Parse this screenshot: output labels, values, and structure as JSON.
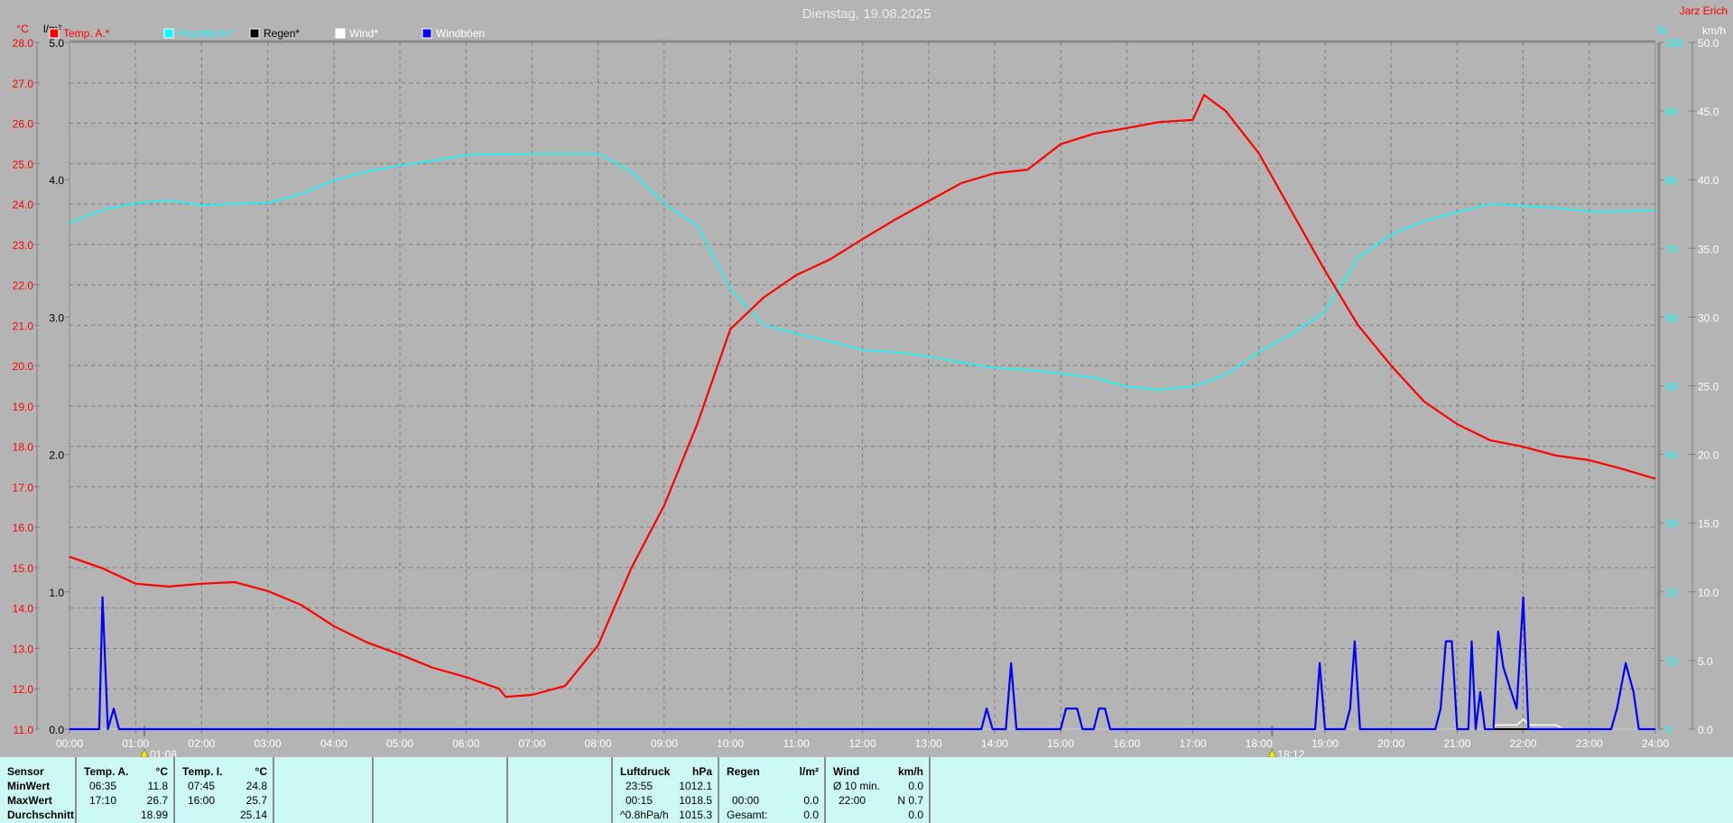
{
  "title": "Dienstag, 19.08.2025",
  "author": "Jarz Erich",
  "colors": {
    "background": "#b4b4b4",
    "temp": "#ff0000",
    "humidity": "#00ffff",
    "rain": "#000000",
    "wind": "#ffffff",
    "gust": "#0000ff",
    "panel": "#ccf9f5"
  },
  "chart_data": {
    "type": "line",
    "title": "Dienstag, 19.08.2025",
    "grid": true,
    "legend_position": "top-left",
    "x_axis": {
      "range": [
        "00:00",
        "24:00"
      ],
      "ticks": [
        "00:00",
        "01:00",
        "02:00",
        "03:00",
        "04:00",
        "05:00",
        "06:00",
        "07:00",
        "08:00",
        "09:00",
        "10:00",
        "11:00",
        "12:00",
        "13:00",
        "14:00",
        "15:00",
        "16:00",
        "17:00",
        "18:00",
        "19:00",
        "20:00",
        "21:00",
        "22:00",
        "23:00",
        "24:00"
      ]
    },
    "axes": {
      "temp": {
        "unit": "°C",
        "range": [
          11.0,
          28.0
        ],
        "ticks": [
          "11.0",
          "12.0",
          "13.0",
          "14.0",
          "15.0",
          "16.0",
          "17.0",
          "18.0",
          "19.0",
          "20.0",
          "21.0",
          "22.0",
          "23.0",
          "24.0",
          "25.0",
          "26.0",
          "27.0",
          "28.0"
        ]
      },
      "rain": {
        "unit": "l/m²",
        "range": [
          0,
          5
        ],
        "ticks": [
          "0.0",
          "1.0",
          "2.0",
          "3.0",
          "4.0",
          "5.0"
        ]
      },
      "humidity": {
        "unit": "%",
        "range": [
          0,
          100
        ],
        "ticks": [
          "0",
          "10",
          "20",
          "30",
          "40",
          "50",
          "60",
          "70",
          "80",
          "90",
          "100"
        ]
      },
      "wind": {
        "unit": "km/h",
        "range": [
          0,
          50
        ],
        "ticks": [
          "0.0",
          "5.0",
          "10.0",
          "15.0",
          "20.0",
          "25.0",
          "30.0",
          "35.0",
          "40.0",
          "45.0",
          "50.0"
        ]
      }
    },
    "markers": [
      {
        "time": "01:08",
        "label": "01:08"
      },
      {
        "time": "18:12",
        "label": "18:12"
      }
    ],
    "series": [
      {
        "name": "Temp. A.*",
        "axis": "temp",
        "color": "#ff0000",
        "points": [
          [
            0,
            15.27
          ],
          [
            0.5,
            14.98
          ],
          [
            1,
            14.6
          ],
          [
            1.5,
            14.53
          ],
          [
            2,
            14.6
          ],
          [
            2.5,
            14.64
          ],
          [
            3,
            14.42
          ],
          [
            3.5,
            14.08
          ],
          [
            4,
            13.55
          ],
          [
            4.5,
            13.15
          ],
          [
            5,
            12.85
          ],
          [
            5.5,
            12.52
          ],
          [
            6,
            12.29
          ],
          [
            6.5,
            12.0
          ],
          [
            6.6,
            11.8
          ],
          [
            7,
            11.85
          ],
          [
            7.5,
            12.07
          ],
          [
            8,
            13.08
          ],
          [
            8.5,
            14.98
          ],
          [
            9,
            16.54
          ],
          [
            9.5,
            18.55
          ],
          [
            10,
            20.9
          ],
          [
            10.5,
            21.68
          ],
          [
            11,
            22.24
          ],
          [
            11.5,
            22.62
          ],
          [
            12,
            23.13
          ],
          [
            12.5,
            23.62
          ],
          [
            13,
            24.07
          ],
          [
            13.5,
            24.52
          ],
          [
            14,
            24.76
          ],
          [
            14.5,
            24.85
          ],
          [
            15,
            25.48
          ],
          [
            15.5,
            25.74
          ],
          [
            16,
            25.88
          ],
          [
            16.5,
            26.03
          ],
          [
            17,
            26.08
          ],
          [
            17.17,
            26.7
          ],
          [
            17.5,
            26.3
          ],
          [
            18,
            25.25
          ],
          [
            18.5,
            23.8
          ],
          [
            19,
            22.35
          ],
          [
            19.5,
            21.0
          ],
          [
            20,
            20.0
          ],
          [
            20.5,
            19.11
          ],
          [
            21,
            18.55
          ],
          [
            21.5,
            18.15
          ],
          [
            22,
            17.99
          ],
          [
            22.5,
            17.77
          ],
          [
            23,
            17.66
          ],
          [
            23.5,
            17.44
          ],
          [
            24,
            17.2
          ]
        ]
      },
      {
        "name": "Feuchte A.*",
        "axis": "humidity",
        "color": "#00ffff",
        "points": [
          [
            0,
            73.7
          ],
          [
            0.5,
            75.6
          ],
          [
            1,
            76.6
          ],
          [
            1.5,
            77
          ],
          [
            2,
            76.3
          ],
          [
            2.5,
            76.5
          ],
          [
            3,
            76.6
          ],
          [
            3.5,
            77.9
          ],
          [
            4,
            79.9
          ],
          [
            4.5,
            81.2
          ],
          [
            5,
            82.1
          ],
          [
            5.5,
            82.8
          ],
          [
            6,
            83.6
          ],
          [
            7,
            83.8
          ],
          [
            8,
            83.8
          ],
          [
            8.5,
            81.2
          ],
          [
            9,
            76.6
          ],
          [
            9.5,
            73.3
          ],
          [
            10,
            64.1
          ],
          [
            10.5,
            58.9
          ],
          [
            11,
            57.6
          ],
          [
            11.5,
            56.5
          ],
          [
            12,
            55.2
          ],
          [
            12.5,
            54.9
          ],
          [
            13,
            54.3
          ],
          [
            13.5,
            53.4
          ],
          [
            14,
            52.6
          ],
          [
            14.5,
            52.3
          ],
          [
            15,
            51.8
          ],
          [
            15.5,
            51.2
          ],
          [
            16,
            49.9
          ],
          [
            16.5,
            49.4
          ],
          [
            17,
            49.9
          ],
          [
            17.5,
            51.6
          ],
          [
            18,
            54.9
          ],
          [
            18.5,
            57.6
          ],
          [
            19,
            60.8
          ],
          [
            19.5,
            68.7
          ],
          [
            20,
            72
          ],
          [
            20.5,
            74
          ],
          [
            21,
            75.3
          ],
          [
            21.5,
            76.5
          ],
          [
            22,
            76.2
          ],
          [
            22.5,
            75.9
          ],
          [
            23,
            75.4
          ],
          [
            23.5,
            75.4
          ],
          [
            24,
            75.6
          ]
        ]
      },
      {
        "name": "Regen*",
        "axis": "rain",
        "color": "#000000",
        "points": [
          [
            0,
            0
          ],
          [
            24,
            0
          ]
        ]
      },
      {
        "name": "Wind*",
        "axis": "wind",
        "color": "#ffffff",
        "points": [
          [
            0,
            0
          ],
          [
            21.5,
            0
          ],
          [
            21.6,
            0.3
          ],
          [
            21.9,
            0.3
          ],
          [
            22,
            0.7
          ],
          [
            22.1,
            0.3
          ],
          [
            22.5,
            0.3
          ],
          [
            22.6,
            0
          ],
          [
            24,
            0
          ]
        ]
      },
      {
        "name": "Windböen",
        "axis": "wind",
        "color": "#0000ff",
        "points": [
          [
            0,
            0
          ],
          [
            0.45,
            0
          ],
          [
            0.5,
            9.6
          ],
          [
            0.58,
            0
          ],
          [
            0.67,
            1.5
          ],
          [
            0.75,
            0
          ],
          [
            13.8,
            0
          ],
          [
            13.88,
            1.5
          ],
          [
            13.97,
            0
          ],
          [
            14.17,
            0
          ],
          [
            14.25,
            4.8
          ],
          [
            14.33,
            0
          ],
          [
            15.0,
            0
          ],
          [
            15.08,
            1.5
          ],
          [
            15.25,
            1.5
          ],
          [
            15.33,
            0
          ],
          [
            15.5,
            0
          ],
          [
            15.58,
            1.5
          ],
          [
            15.67,
            1.5
          ],
          [
            15.75,
            0
          ],
          [
            18.85,
            0
          ],
          [
            18.92,
            4.8
          ],
          [
            19.0,
            0
          ],
          [
            19.3,
            0
          ],
          [
            19.38,
            1.5
          ],
          [
            19.45,
            6.4
          ],
          [
            19.53,
            0
          ],
          [
            20.67,
            0
          ],
          [
            20.75,
            1.5
          ],
          [
            20.83,
            6.4
          ],
          [
            20.92,
            6.4
          ],
          [
            21.0,
            0
          ],
          [
            21.17,
            0
          ],
          [
            21.22,
            6.4
          ],
          [
            21.28,
            0
          ],
          [
            21.35,
            2.7
          ],
          [
            21.42,
            0
          ],
          [
            21.55,
            0
          ],
          [
            21.62,
            7.1
          ],
          [
            21.7,
            4.5
          ],
          [
            21.9,
            1.5
          ],
          [
            22.0,
            9.6
          ],
          [
            22.08,
            0
          ],
          [
            23.33,
            0
          ],
          [
            23.42,
            1.5
          ],
          [
            23.55,
            4.8
          ],
          [
            23.67,
            2.7
          ],
          [
            23.75,
            0
          ],
          [
            24,
            0
          ]
        ]
      }
    ]
  },
  "stats": {
    "sensor": {
      "header": "Sensor",
      "rows": [
        "MinWert",
        "MaxWert",
        "Durchschnitt"
      ]
    },
    "temp_a": {
      "header": "Temp. A.",
      "unit": "°C",
      "min_time": "06:35",
      "min": "11.8",
      "max_time": "17:10",
      "max": "26.7",
      "avg": "18.99"
    },
    "temp_i": {
      "header": "Temp. I.",
      "unit": "°C",
      "min_time": "07:45",
      "min": "24.8",
      "max_time": "16:00",
      "max": "25.7",
      "avg": "25.14"
    },
    "pressure": {
      "header": "Luftdruck",
      "unit": "hPa",
      "min_time": "23:55",
      "min": "1012.1",
      "max_time": "00:15",
      "max": "1018.5",
      "trend": "^0.8hPa/h",
      "avg": "1015.3"
    },
    "rain": {
      "header": "Regen",
      "unit": "l/m²",
      "max_time": "00:00",
      "max": "0.0",
      "total_label": "Gesamt:",
      "total": "0.0"
    },
    "wind": {
      "header": "Wind",
      "unit": "km/h",
      "avg_label": "Ø 10 min.",
      "avg": "0.0",
      "max_time": "22:00",
      "max": "N 0.7",
      "total": "0.0"
    }
  }
}
